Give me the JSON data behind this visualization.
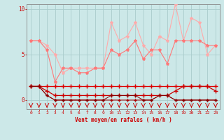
{
  "x": [
    0,
    1,
    2,
    3,
    4,
    5,
    6,
    7,
    8,
    9,
    10,
    11,
    12,
    13,
    14,
    15,
    16,
    17,
    18,
    19,
    20,
    21,
    22,
    23
  ],
  "rafales": [
    6.5,
    6.5,
    6.0,
    5.0,
    3.0,
    3.5,
    3.5,
    3.5,
    3.5,
    3.5,
    8.5,
    6.5,
    7.0,
    8.5,
    6.0,
    5.0,
    7.0,
    6.5,
    10.5,
    6.5,
    9.0,
    8.5,
    5.0,
    6.0
  ],
  "moyen": [
    6.5,
    6.5,
    5.5,
    2.0,
    3.5,
    3.5,
    3.0,
    3.0,
    3.5,
    3.5,
    5.5,
    5.0,
    5.5,
    6.5,
    4.5,
    5.5,
    5.5,
    4.0,
    6.5,
    6.5,
    6.5,
    6.5,
    6.0,
    6.0
  ],
  "line_high": [
    1.5,
    1.5,
    1.5,
    1.5,
    1.5,
    1.5,
    1.5,
    1.5,
    1.5,
    1.5,
    1.5,
    1.5,
    1.5,
    1.5,
    1.5,
    1.5,
    1.5,
    1.5,
    1.5,
    1.5,
    1.5,
    1.5,
    1.5,
    1.5
  ],
  "line_mid": [
    1.5,
    1.5,
    1.0,
    0.5,
    0.5,
    0.5,
    0.5,
    0.5,
    0.5,
    0.5,
    0.5,
    0.5,
    0.5,
    0.5,
    0.5,
    0.5,
    0.5,
    0.5,
    1.0,
    1.5,
    1.5,
    1.5,
    1.5,
    1.0
  ],
  "line_low1": [
    1.5,
    1.5,
    0.5,
    0.0,
    0.0,
    0.0,
    0.0,
    0.0,
    0.0,
    0.0,
    0.0,
    0.0,
    0.0,
    0.0,
    0.0,
    0.0,
    0.5,
    0.5,
    0.0,
    0.0,
    0.0,
    0.0,
    0.0,
    0.0
  ],
  "line_low2": [
    1.5,
    1.5,
    0.5,
    0.0,
    0.0,
    0.0,
    0.0,
    0.0,
    0.0,
    0.0,
    0.5,
    0.5,
    0.5,
    0.5,
    0.0,
    0.0,
    0.5,
    0.5,
    0.0,
    0.0,
    0.0,
    0.0,
    0.0,
    0.0
  ],
  "background_color": "#cce8e8",
  "grid_color": "#aacccc",
  "color_rafales": "#ffaaaa",
  "color_moyen": "#ff7777",
  "color_high": "#dd0000",
  "color_mid": "#cc0000",
  "color_low1": "#aa0000",
  "color_low2": "#880000",
  "xlabel": "Vent moyen/en rafales ( km/h )",
  "ylim": [
    -1.0,
    10.5
  ],
  "yticks": [
    0,
    5,
    10
  ],
  "xlim": [
    -0.5,
    23.5
  ]
}
